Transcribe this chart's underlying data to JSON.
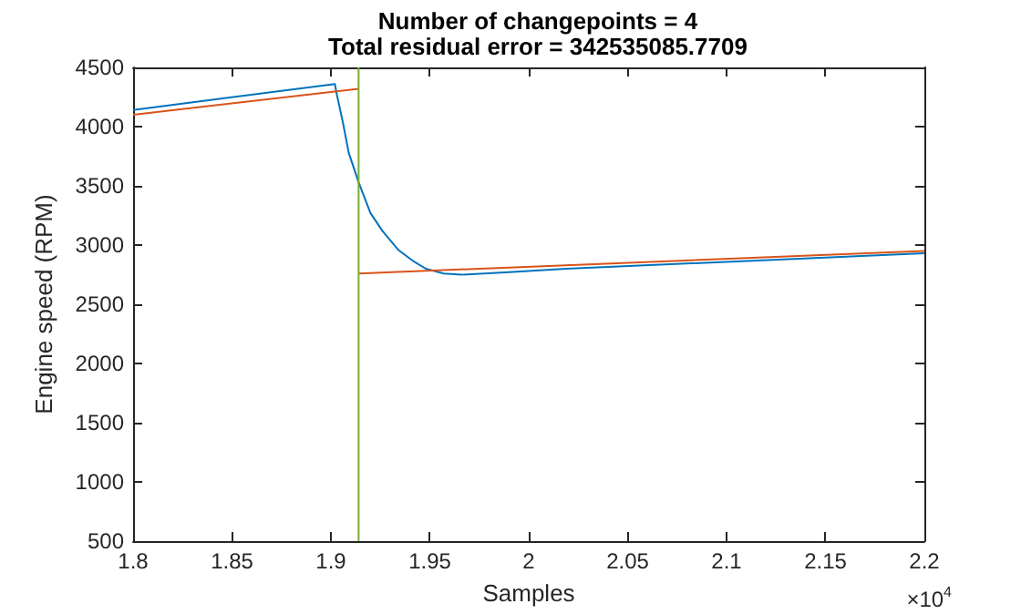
{
  "chart_data": {
    "type": "line",
    "title": "Number of changepoints = 4",
    "subtitle": "Total residual error = 342535085.7709",
    "xlabel": "Samples",
    "ylabel": "Engine speed (RPM)",
    "annotations": [
      "×10$^{4}$"
    ],
    "xlim": [
      1.8,
      2.2
    ],
    "xticks": [
      1.8,
      1.85,
      1.9,
      1.95,
      2,
      2.05,
      2.1,
      2.15,
      2.2
    ],
    "ylim": [
      500,
      4500
    ],
    "yticks": [
      500,
      1000,
      1500,
      2000,
      2500,
      3000,
      3500,
      4000,
      4500
    ],
    "grid": false,
    "marker": "none",
    "line_style": "solid",
    "series": [
      {
        "color": "#0072bd",
        "x": [
          1.8,
          1.902,
          1.903,
          1.906,
          1.909,
          1.914,
          1.92,
          1.926,
          1.934,
          1.942,
          1.948,
          1.957,
          1.966,
          1.988,
          2.019,
          2.2
        ],
        "values": [
          4140,
          4360,
          4270,
          4040,
          3780,
          3530,
          3270,
          3120,
          2960,
          2860,
          2800,
          2760,
          2750,
          2770,
          2800,
          2930
        ]
      },
      {
        "color": "#d95319",
        "x": [
          1.8,
          1.914
        ],
        "values": [
          4100,
          4320
        ]
      },
      {
        "color": "#d95319",
        "x": [
          1.914,
          2.2
        ],
        "values": [
          2760,
          2950
        ]
      }
    ],
    "ref_lines": [
      {
        "axis": "x",
        "value": 1.914,
        "color": "#77ac30"
      }
    ]
  }
}
